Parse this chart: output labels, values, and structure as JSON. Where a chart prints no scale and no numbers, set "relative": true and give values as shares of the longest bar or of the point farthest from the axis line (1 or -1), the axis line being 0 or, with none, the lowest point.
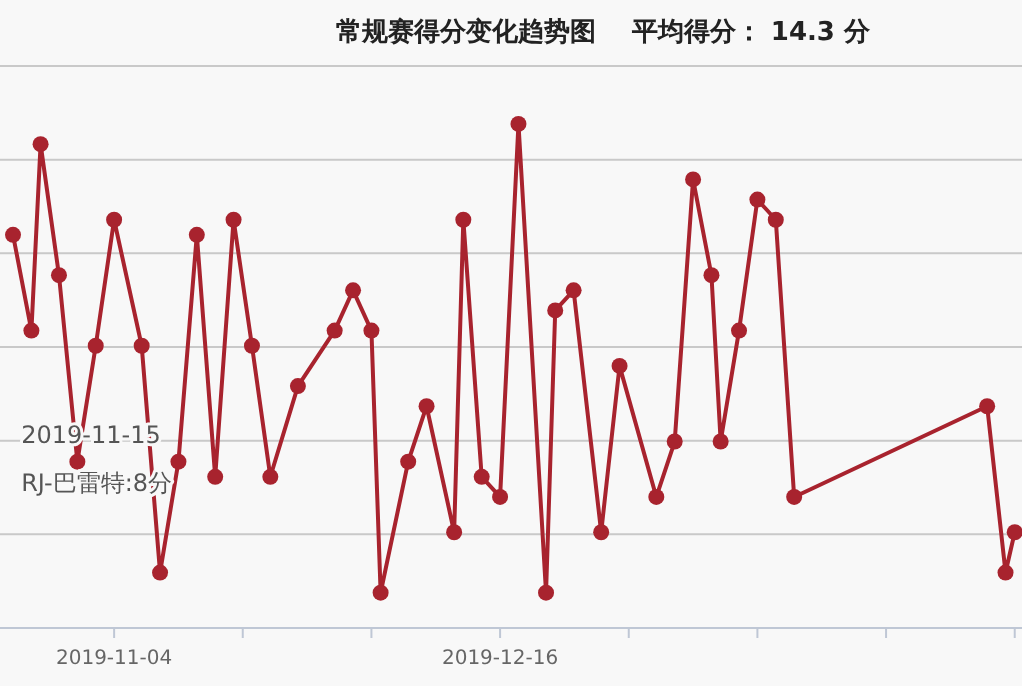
{
  "chart_data": {
    "type": "line",
    "title": "常规赛得分变化趋势图    平均得分： 14.3 分",
    "relative": true,
    "x": [
      "2019-10-24",
      "2019-10-26",
      "2019-10-27",
      "2019-10-29",
      "2019-10-31",
      "2019-11-02",
      "2019-11-04",
      "2019-11-07",
      "2019-11-09",
      "2019-11-11",
      "2019-11-13",
      "2019-11-15",
      "2019-11-17",
      "2019-11-19",
      "2019-11-21",
      "2019-11-24",
      "2019-11-28",
      "2019-11-30",
      "2019-12-02",
      "2019-12-03",
      "2019-12-06",
      "2019-12-08",
      "2019-12-11",
      "2019-12-12",
      "2019-12-14",
      "2019-12-16",
      "2019-12-18",
      "2019-12-21",
      "2019-12-22",
      "2019-12-24",
      "2019-12-27",
      "2019-12-29",
      "2020-01-02",
      "2020-01-04",
      "2020-01-06",
      "2020-01-08",
      "2020-01-09",
      "2020-01-11",
      "2020-01-13",
      "2020-01-15",
      "2020-01-17",
      "2020-02-07",
      "2020-02-09",
      "2020-02-10"
    ],
    "series": [
      {
        "color": "#a8232e",
        "values": [
          0.78,
          0.59,
          0.96,
          0.7,
          0.33,
          0.56,
          0.81,
          0.56,
          0.11,
          0.33,
          0.78,
          0.3,
          0.81,
          0.56,
          0.3,
          0.48,
          0.59,
          0.67,
          0.59,
          0.07,
          0.33,
          0.44,
          0.19,
          0.81,
          0.3,
          0.26,
          1,
          0.07,
          0.63,
          0.67,
          0.19,
          0.52,
          0.26,
          0.37,
          0.89,
          0.7,
          0.37,
          0.59,
          0.85,
          0.81,
          0.26,
          0.44,
          0.11,
          0.19
        ]
      }
    ],
    "xlim": [
      "2019-10-22T14:00",
      "2020-02-10T19:00"
    ],
    "xticks": [
      {
        "value": "2019-11-04",
        "label": "2019-11-04"
      },
      {
        "value": "2019-11-18",
        "label": null
      },
      {
        "value": "2019-12-02",
        "label": null
      },
      {
        "value": "2019-12-16",
        "label": "2019-12-16"
      },
      {
        "value": "2019-12-30",
        "label": null
      },
      {
        "value": "2020-01-13",
        "label": null
      },
      {
        "value": "2020-01-27",
        "label": null
      },
      {
        "value": "2020-02-10",
        "label": null
      }
    ],
    "annotations": [
      {
        "text": "2019-11-15\nRJ-巴雷特:8分",
        "x": "2019-11-15",
        "y": 0.3
      }
    ],
    "grid": "y",
    "marker": "circle",
    "line_style": "solid"
  }
}
